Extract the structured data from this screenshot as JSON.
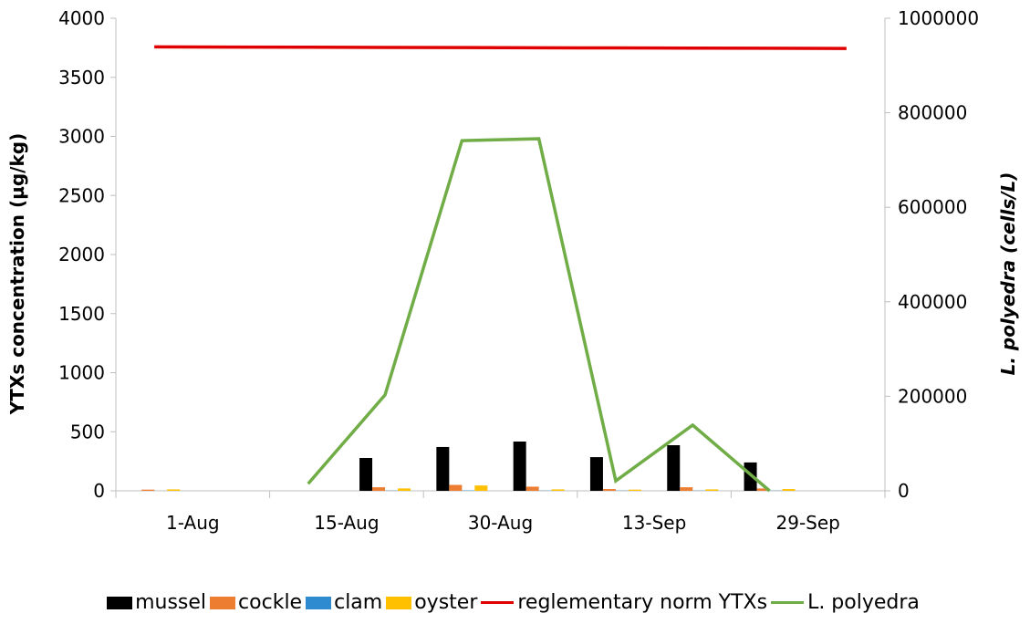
{
  "chart_data": {
    "type": "bar-line",
    "categories": [
      "1-Aug",
      null,
      "15-Aug",
      null,
      "30-Aug",
      null,
      "13-Sep",
      null,
      "29-Sep",
      null
    ],
    "ylabel": "YTXs concentration (µg/kg)",
    "y2label": "L. polyedra (cells/L)",
    "ylim": [
      0,
      4000
    ],
    "yticks": [
      0,
      500,
      1000,
      1500,
      2000,
      2500,
      3000,
      3500,
      4000
    ],
    "y2lim": [
      0,
      1000000
    ],
    "y2ticks": [
      0,
      200000,
      400000,
      600000,
      800000,
      1000000
    ],
    "series": [
      {
        "name": "mussel",
        "type": "bar",
        "color": "#000000",
        "values": [
          null,
          null,
          null,
          278,
          371,
          417,
          285,
          386,
          240,
          null
        ]
      },
      {
        "name": "cockle",
        "type": "bar",
        "color": "#ed7d31",
        "values": [
          10,
          null,
          null,
          30,
          50,
          35,
          15,
          30,
          20,
          null
        ]
      },
      {
        "name": "clam",
        "type": "bar",
        "color": "#2e8bd0",
        "values": [
          null,
          null,
          null,
          2,
          3,
          2,
          2,
          2,
          2,
          null
        ]
      },
      {
        "name": "oyster",
        "type": "bar",
        "color": "#ffc000",
        "values": [
          12,
          null,
          null,
          20,
          45,
          12,
          10,
          12,
          15,
          null
        ]
      },
      {
        "name": "reglementary norm YTXs",
        "type": "line",
        "color": "#e00000",
        "values": [
          3758,
          3756,
          3755,
          3753,
          3752,
          3750,
          3749,
          3747,
          3746,
          3744
        ]
      },
      {
        "name": "L. polyedra",
        "type": "line",
        "axis": "y2",
        "color": "#70ad47",
        "values": [
          null,
          null,
          15000,
          203000,
          741000,
          745000,
          21000,
          139000,
          0,
          null
        ]
      }
    ]
  }
}
